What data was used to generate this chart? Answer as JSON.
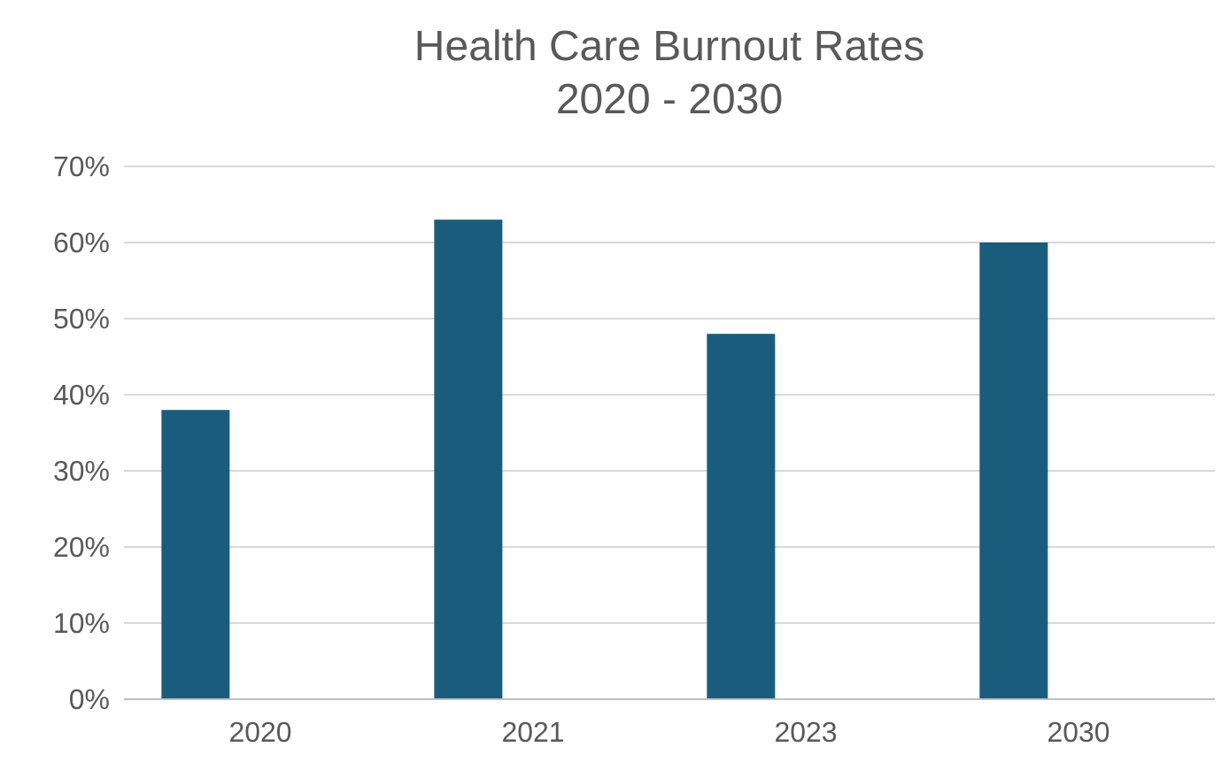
{
  "chart_data": {
    "type": "bar",
    "title": "Health Care Burnout Rates\n2020 - 2030",
    "categories": [
      "2020",
      "2021",
      "2023",
      "2030"
    ],
    "values": [
      38,
      63,
      48,
      60
    ],
    "color": "#1a5c7c",
    "ylim": [
      0,
      70
    ],
    "yticks": [
      {
        "value": 0,
        "label": "0%"
      },
      {
        "value": 10,
        "label": "10%"
      },
      {
        "value": 20,
        "label": "20%"
      },
      {
        "value": 30,
        "label": "30%"
      },
      {
        "value": 40,
        "label": "40%"
      },
      {
        "value": 50,
        "label": "50%"
      },
      {
        "value": 60,
        "label": "60%"
      },
      {
        "value": 70,
        "label": "70%"
      }
    ],
    "grid": "y"
  }
}
